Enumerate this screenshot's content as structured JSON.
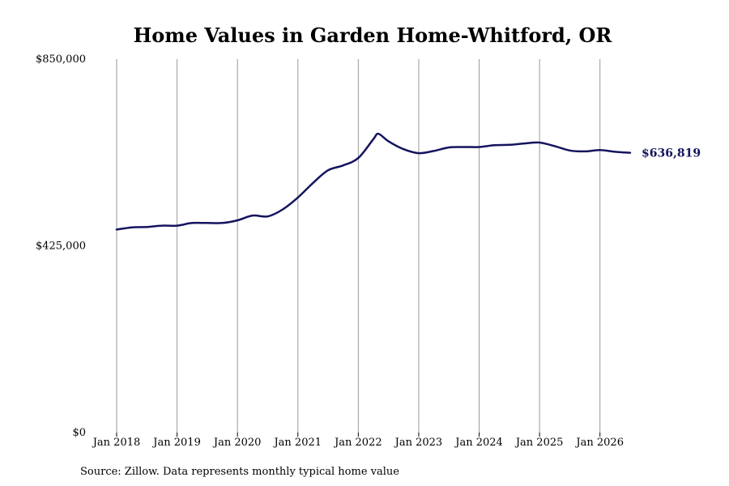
{
  "chart_data": {
    "type": "line",
    "title": "Home Values in Garden Home-Whitford, OR",
    "source": "Source: Zillow. Data represents monthly typical home value",
    "xlabel": "",
    "ylabel": "",
    "ylim": [
      0,
      850000
    ],
    "y_ticks": [
      {
        "value": 0,
        "label": "$0"
      },
      {
        "value": 425000,
        "label": "$425,000"
      },
      {
        "value": 850000,
        "label": "$850,000"
      }
    ],
    "x_range": [
      "2018-01",
      "2026-07"
    ],
    "x_ticks": [
      {
        "value": "2018-01",
        "label": "Jan 2018"
      },
      {
        "value": "2019-01",
        "label": "Jan 2019"
      },
      {
        "value": "2020-01",
        "label": "Jan 2020"
      },
      {
        "value": "2021-01",
        "label": "Jan 2021"
      },
      {
        "value": "2022-01",
        "label": "Jan 2022"
      },
      {
        "value": "2023-01",
        "label": "Jan 2023"
      },
      {
        "value": "2024-01",
        "label": "Jan 2024"
      },
      {
        "value": "2025-01",
        "label": "Jan 2025"
      },
      {
        "value": "2026-01",
        "label": "Jan 2026"
      }
    ],
    "grid": "vertical",
    "line_color": "#14145e",
    "end_label": "$636,819",
    "series": [
      {
        "x": [
          "2018-01",
          "2018-04",
          "2018-07",
          "2018-10",
          "2019-01",
          "2019-04",
          "2019-07",
          "2019-10",
          "2020-01",
          "2020-04",
          "2020-07",
          "2020-10",
          "2021-01",
          "2021-04",
          "2021-07",
          "2021-10",
          "2022-01",
          "2022-04",
          "2022-05",
          "2022-07",
          "2022-10",
          "2023-01",
          "2023-04",
          "2023-07",
          "2023-10",
          "2024-01",
          "2024-04",
          "2024-07",
          "2024-10",
          "2025-01",
          "2025-04",
          "2025-07",
          "2025-10",
          "2026-01",
          "2026-04",
          "2026-07"
        ],
        "values": [
          462000,
          467000,
          468000,
          471000,
          471000,
          477000,
          477000,
          477000,
          483000,
          494000,
          492000,
          508000,
          535000,
          568000,
          597000,
          608000,
          625000,
          668000,
          680000,
          663000,
          645000,
          636000,
          641000,
          649000,
          650000,
          650000,
          654000,
          655000,
          658000,
          660000,
          652000,
          642000,
          640000,
          643000,
          639000,
          636819
        ]
      }
    ]
  }
}
